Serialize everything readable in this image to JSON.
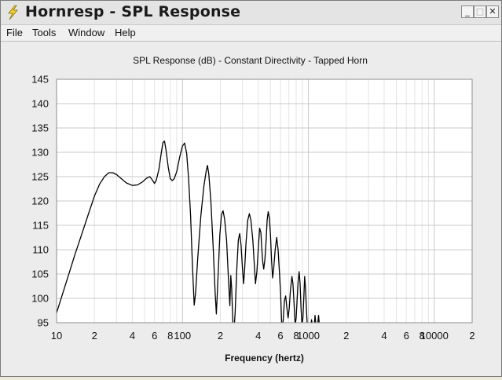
{
  "window": {
    "title": "Hornresp - SPL Response"
  },
  "title_buttons": {
    "minimize": "_",
    "maximize": "□",
    "close": "✕"
  },
  "menu": {
    "items": [
      "File",
      "Tools",
      "Window",
      "Help"
    ]
  },
  "icons": {
    "app": "lightning-bolt-icon"
  },
  "colors": {
    "plot_background": "#ffffff",
    "grid_major": "#c8c8c8",
    "grid_minor": "#e4e4e4",
    "curve": "#000000",
    "client_background": "#ececec"
  },
  "chart_data": {
    "type": "line",
    "title": "SPL Response (dB) - Constant Directivity - Tapped Horn",
    "xlabel": "Frequency (hertz)",
    "ylabel": "",
    "x_scale": "log",
    "xlim": [
      10,
      20000
    ],
    "ylim": [
      95,
      145
    ],
    "grid": true,
    "y_ticks": [
      145,
      140,
      135,
      130,
      125,
      120,
      115,
      110,
      105,
      100,
      95
    ],
    "x_ticks": [
      {
        "value": 10,
        "label": "10"
      },
      {
        "value": 20,
        "label": "2"
      },
      {
        "value": 40,
        "label": "4"
      },
      {
        "value": 60,
        "label": "6"
      },
      {
        "value": 80,
        "label": "8"
      },
      {
        "value": 100,
        "label": "100"
      },
      {
        "value": 200,
        "label": "2"
      },
      {
        "value": 400,
        "label": "4"
      },
      {
        "value": 600,
        "label": "6"
      },
      {
        "value": 800,
        "label": "8"
      },
      {
        "value": 1000,
        "label": "1000"
      },
      {
        "value": 2000,
        "label": "2"
      },
      {
        "value": 4000,
        "label": "4"
      },
      {
        "value": 6000,
        "label": "6"
      },
      {
        "value": 8000,
        "label": "8"
      },
      {
        "value": 10000,
        "label": "10000"
      },
      {
        "value": 20000,
        "label": "2"
      }
    ],
    "series": [
      {
        "values": [
          [
            10,
            97
          ],
          [
            12,
            103.5
          ],
          [
            14,
            109
          ],
          [
            16,
            113.5
          ],
          [
            18,
            117.5
          ],
          [
            20,
            121
          ],
          [
            22,
            123.5
          ],
          [
            24,
            125
          ],
          [
            26,
            125.8
          ],
          [
            28,
            125.8
          ],
          [
            30,
            125.4
          ],
          [
            33,
            124.5
          ],
          [
            36,
            123.7
          ],
          [
            40,
            123.2
          ],
          [
            44,
            123.3
          ],
          [
            48,
            123.9
          ],
          [
            52,
            124.7
          ],
          [
            55,
            125
          ],
          [
            57,
            124.5
          ],
          [
            60,
            123.6
          ],
          [
            62,
            124.3
          ],
          [
            65,
            126.5
          ],
          [
            68,
            130
          ],
          [
            70,
            132
          ],
          [
            72,
            132.3
          ],
          [
            74,
            130.5
          ],
          [
            77,
            127
          ],
          [
            80,
            124.6
          ],
          [
            83,
            124.2
          ],
          [
            86,
            124.6
          ],
          [
            90,
            126
          ],
          [
            95,
            129
          ],
          [
            100,
            131.3
          ],
          [
            104,
            131.9
          ],
          [
            108,
            129.8
          ],
          [
            112,
            124.5
          ],
          [
            116,
            117
          ],
          [
            120,
            107
          ],
          [
            124,
            98.6
          ],
          [
            127,
            101
          ],
          [
            132,
            108
          ],
          [
            140,
            117
          ],
          [
            148,
            123
          ],
          [
            154,
            126
          ],
          [
            158,
            127.3
          ],
          [
            162,
            125.5
          ],
          [
            168,
            120
          ],
          [
            175,
            111
          ],
          [
            182,
            101
          ],
          [
            186,
            96.8
          ],
          [
            190,
            102
          ],
          [
            198,
            113
          ],
          [
            204,
            117.2
          ],
          [
            210,
            118
          ],
          [
            216,
            116.3
          ],
          [
            224,
            112
          ],
          [
            232,
            104
          ],
          [
            238,
            98.5
          ],
          [
            242,
            104.7
          ],
          [
            246,
            102
          ],
          [
            250,
            97
          ],
          [
            252,
            94
          ],
          [
            256,
            93
          ],
          [
            262,
            97
          ],
          [
            270,
            106
          ],
          [
            278,
            112
          ],
          [
            285,
            113.3
          ],
          [
            292,
            111
          ],
          [
            300,
            106
          ],
          [
            306,
            103
          ],
          [
            312,
            106
          ],
          [
            320,
            111.5
          ],
          [
            330,
            116
          ],
          [
            340,
            117.4
          ],
          [
            350,
            116
          ],
          [
            362,
            112
          ],
          [
            372,
            107
          ],
          [
            380,
            103
          ],
          [
            390,
            105.5
          ],
          [
            400,
            110
          ],
          [
            410,
            114.4
          ],
          [
            420,
            113.5
          ],
          [
            432,
            108
          ],
          [
            442,
            106
          ],
          [
            452,
            108
          ],
          [
            462,
            112
          ],
          [
            470,
            116
          ],
          [
            480,
            117.8
          ],
          [
            490,
            116.5
          ],
          [
            500,
            113
          ],
          [
            510,
            108
          ],
          [
            520,
            104.2
          ],
          [
            530,
            106
          ],
          [
            545,
            110
          ],
          [
            560,
            112.5
          ],
          [
            575,
            110
          ],
          [
            590,
            105
          ],
          [
            602,
            101
          ],
          [
            612,
            96
          ],
          [
            620,
            93
          ],
          [
            630,
            95
          ],
          [
            645,
            99.5
          ],
          [
            660,
            100.5
          ],
          [
            675,
            98
          ],
          [
            690,
            96
          ],
          [
            705,
            98
          ],
          [
            720,
            101.5
          ],
          [
            740,
            104.5
          ],
          [
            755,
            103
          ],
          [
            770,
            99
          ],
          [
            785,
            94.5
          ],
          [
            800,
            96
          ],
          [
            815,
            100
          ],
          [
            830,
            103.5
          ],
          [
            845,
            105.5
          ],
          [
            860,
            103
          ],
          [
            875,
            98
          ],
          [
            890,
            94.5
          ],
          [
            905,
            96
          ],
          [
            920,
            100
          ],
          [
            935,
            104.5
          ],
          [
            950,
            102
          ],
          [
            965,
            98
          ],
          [
            980,
            94.5
          ],
          [
            1000,
            93
          ],
          [
            1040,
            94
          ],
          [
            1060,
            95.6
          ],
          [
            1075,
            94.5
          ],
          [
            1090,
            93
          ],
          [
            1110,
            94
          ],
          [
            1130,
            96.5
          ],
          [
            1150,
            94.5
          ],
          [
            1170,
            93
          ],
          [
            1190,
            95
          ],
          [
            1205,
            96.5
          ],
          [
            1220,
            95
          ],
          [
            1240,
            94
          ]
        ]
      }
    ]
  }
}
